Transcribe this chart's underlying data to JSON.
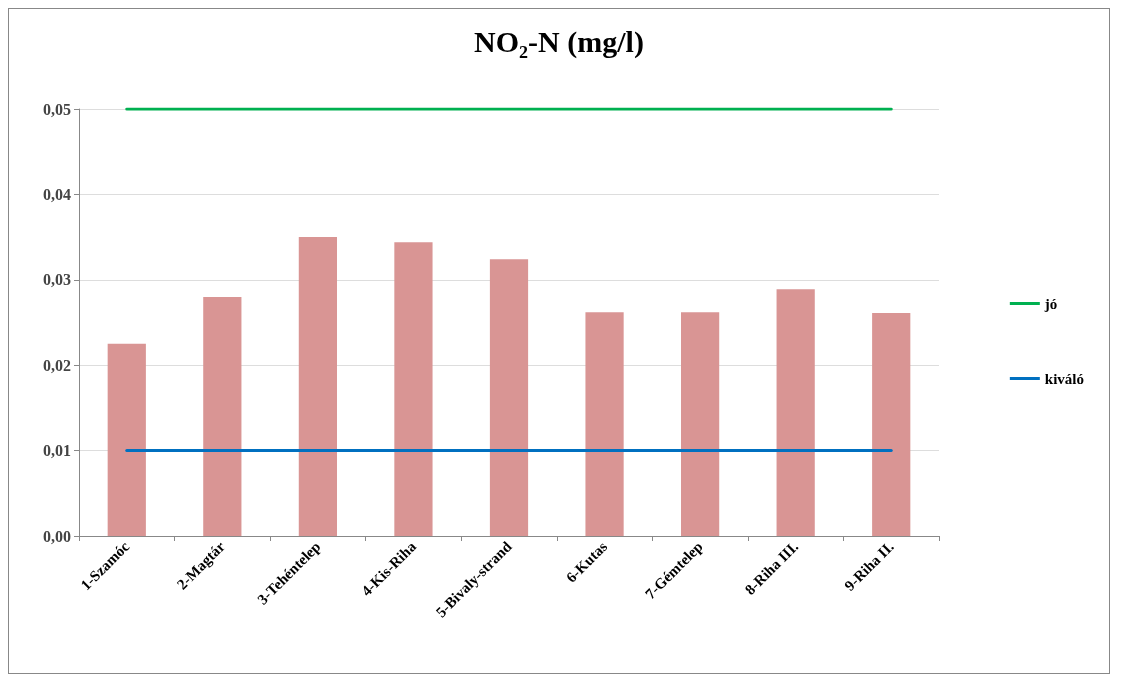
{
  "chart_data": {
    "type": "bar",
    "title": "NO₂-N (mg/l)",
    "categories": [
      "1-Szamóc",
      "2-Magtár",
      "3-Tehéntelep",
      "4-Kis-Riha",
      "5-Bivaly-strand",
      "6-Kutas",
      "7-Gémtelep",
      "8-Riha III.",
      "9-Riha II."
    ],
    "series": [
      {
        "color": "#d99594",
        "values": [
          0.0225,
          0.028,
          0.035,
          0.0344,
          0.0324,
          0.0262,
          0.0262,
          0.0289,
          0.0261
        ]
      },
      {
        "type": "line",
        "name": "jó",
        "color": "#00b050",
        "values": [
          0.05,
          0.05,
          0.05,
          0.05,
          0.05,
          0.05,
          0.05,
          0.05,
          0.05
        ]
      },
      {
        "type": "line",
        "name": "kiváló",
        "color": "#0070c0",
        "values": [
          0.01,
          0.01,
          0.01,
          0.01,
          0.01,
          0.01,
          0.01,
          0.01,
          0.01
        ]
      }
    ],
    "ylim": [
      0,
      0.05
    ],
    "yticks": [
      {
        "value": 0,
        "label": "0,00"
      },
      {
        "value": 0.01,
        "label": "0,01"
      },
      {
        "value": 0.02,
        "label": "0,02"
      },
      {
        "value": 0.03,
        "label": "0,03"
      },
      {
        "value": 0.04,
        "label": "0,04"
      },
      {
        "value": 0.05,
        "label": "0,05"
      }
    ],
    "grid": "y",
    "legend": "right",
    "marker": "none",
    "line_style": "solid"
  }
}
